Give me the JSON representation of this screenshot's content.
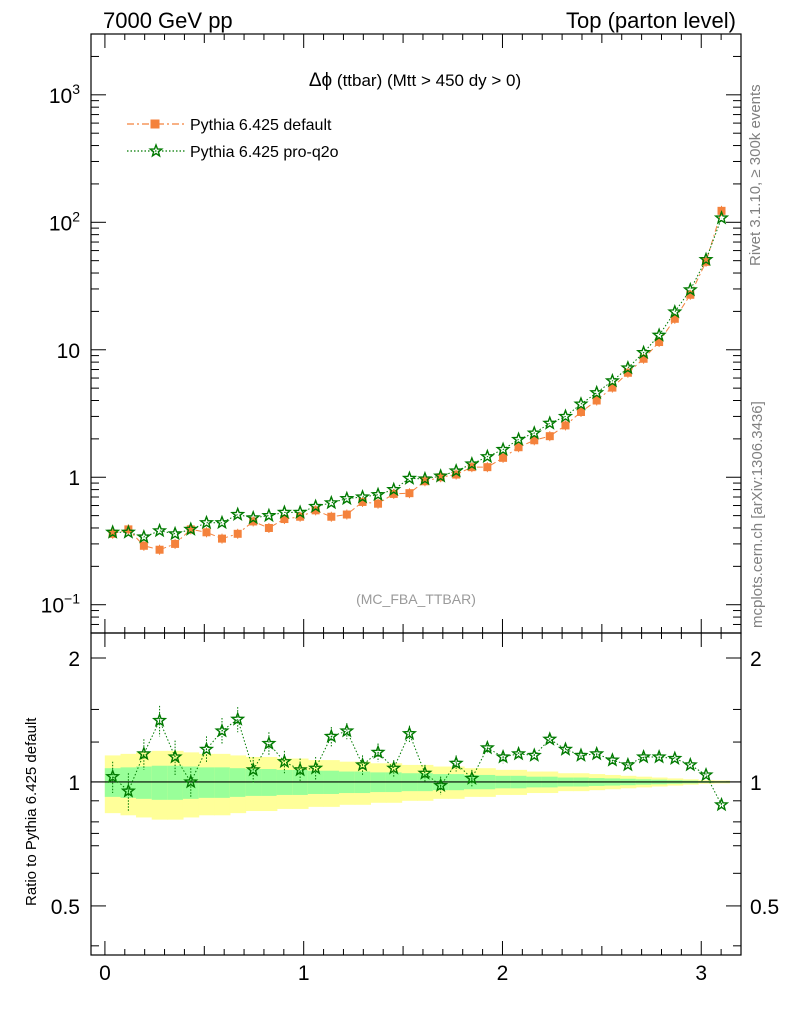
{
  "header": {
    "left": "7000 GeV pp",
    "right": "Top (parton level)"
  },
  "side_labels": {
    "rivet": "Rivet 3.1.10, ≥ 300k events",
    "mcplots": "mcplots.cern.ch [arXiv:1306.3436]"
  },
  "ratio_ylabel": "Ratio to Pythia 6.425 default",
  "analysis_tag": "(MC_FBA_TTBAR)",
  "chart_data": {
    "type": "line",
    "title": "Δϕ (ttbar) (Mtt > 450 dy > 0)",
    "title_prefix": "Δϕ",
    "title_rest": " (ttbar) (Mtt > 450 dy > 0)",
    "xlim": [
      -0.07,
      3.2
    ],
    "ylim_main": [
      0.06,
      3000
    ],
    "ylog": true,
    "ylim_ratio": [
      0.38,
      2.3
    ],
    "ratio_ylog": true,
    "legend_position": "top-left",
    "main_yticks": [
      {
        "value": 0.1,
        "base": "10",
        "exp": "−1"
      },
      {
        "value": 1,
        "base": "1",
        "exp": ""
      },
      {
        "value": 10,
        "base": "10",
        "exp": ""
      },
      {
        "value": 100,
        "base": "10",
        "exp": "2"
      },
      {
        "value": 1000,
        "base": "10",
        "exp": "3"
      }
    ],
    "ratio_yticks": [
      {
        "value": 0.5,
        "label": "0.5"
      },
      {
        "value": 1,
        "label": "1"
      },
      {
        "value": 2,
        "label": "2"
      }
    ],
    "xticks": [
      {
        "value": 0,
        "label": "0"
      },
      {
        "value": 1,
        "label": "1"
      },
      {
        "value": 2,
        "label": "2"
      },
      {
        "value": 3,
        "label": "3"
      }
    ],
    "x": [
      0.039,
      0.118,
      0.196,
      0.275,
      0.353,
      0.432,
      0.511,
      0.589,
      0.668,
      0.746,
      0.825,
      0.903,
      0.982,
      1.06,
      1.139,
      1.217,
      1.296,
      1.374,
      1.453,
      1.532,
      1.61,
      1.689,
      1.767,
      1.846,
      1.924,
      2.003,
      2.081,
      2.16,
      2.238,
      2.317,
      2.395,
      2.474,
      2.553,
      2.631,
      2.71,
      2.788,
      2.867,
      2.945,
      3.024,
      3.102
    ],
    "series": [
      {
        "name": "Pythia 6.425 default",
        "color": "#f4823c",
        "marker": "square",
        "values": [
          0.36,
          0.39,
          0.29,
          0.27,
          0.3,
          0.39,
          0.37,
          0.33,
          0.36,
          0.45,
          0.4,
          0.47,
          0.49,
          0.55,
          0.49,
          0.51,
          0.64,
          0.62,
          0.74,
          0.75,
          0.93,
          1.0,
          1.05,
          1.2,
          1.2,
          1.42,
          1.72,
          1.95,
          2.1,
          2.55,
          3.25,
          4.0,
          5.05,
          6.6,
          8.5,
          11.5,
          17.5,
          27.0,
          49.0,
          123.0
        ]
      },
      {
        "name": "Pythia 6.425 pro-q2o",
        "color": "#007a00",
        "marker": "star",
        "values": [
          0.37,
          0.37,
          0.34,
          0.38,
          0.36,
          0.39,
          0.44,
          0.44,
          0.51,
          0.48,
          0.5,
          0.53,
          0.53,
          0.59,
          0.63,
          0.68,
          0.7,
          0.73,
          0.8,
          0.98,
          0.97,
          1.02,
          1.12,
          1.27,
          1.45,
          1.65,
          1.98,
          2.22,
          2.65,
          3.0,
          3.75,
          4.6,
          5.7,
          7.2,
          9.5,
          13.0,
          19.8,
          29.5,
          51.0,
          108.0
        ]
      }
    ],
    "ratio": [
      1.03,
      0.95,
      1.17,
      1.41,
      1.15,
      1.0,
      1.2,
      1.33,
      1.42,
      1.07,
      1.24,
      1.12,
      1.07,
      1.08,
      1.29,
      1.33,
      1.1,
      1.18,
      1.08,
      1.31,
      1.05,
      0.98,
      1.11,
      1.02,
      1.21,
      1.15,
      1.17,
      1.16,
      1.27,
      1.2,
      1.16,
      1.17,
      1.13,
      1.1,
      1.15,
      1.15,
      1.14,
      1.1,
      1.04,
      0.88
    ],
    "ratio_error": [
      0.09,
      0.1,
      0.1,
      0.12,
      0.11,
      0.08,
      0.09,
      0.1,
      0.1,
      0.08,
      0.08,
      0.07,
      0.07,
      0.07,
      0.07,
      0.06,
      0.06,
      0.06,
      0.05,
      0.06,
      0.05,
      0.05,
      0.05,
      0.05,
      0.04,
      0.04,
      0.03,
      0.03,
      0.03,
      0.03,
      0.02,
      0.02,
      0.02,
      0.02,
      0.02,
      0.02,
      0.01,
      0.01,
      0.01,
      0.01
    ],
    "band_outer": [
      0.16,
      0.17,
      0.18,
      0.19,
      0.19,
      0.18,
      0.17,
      0.17,
      0.16,
      0.15,
      0.15,
      0.14,
      0.14,
      0.13,
      0.13,
      0.12,
      0.12,
      0.11,
      0.11,
      0.1,
      0.1,
      0.09,
      0.09,
      0.08,
      0.08,
      0.07,
      0.07,
      0.06,
      0.06,
      0.05,
      0.05,
      0.045,
      0.04,
      0.035,
      0.03,
      0.025,
      0.02,
      0.015,
      0.01,
      0.008
    ],
    "band_inner": [
      0.08,
      0.085,
      0.09,
      0.095,
      0.095,
      0.09,
      0.085,
      0.085,
      0.08,
      0.075,
      0.075,
      0.07,
      0.07,
      0.065,
      0.065,
      0.06,
      0.06,
      0.055,
      0.055,
      0.05,
      0.05,
      0.045,
      0.045,
      0.04,
      0.04,
      0.035,
      0.035,
      0.03,
      0.03,
      0.025,
      0.025,
      0.022,
      0.02,
      0.018,
      0.015,
      0.013,
      0.01,
      0.008,
      0.005,
      0.004
    ],
    "band_colors": {
      "outer": "#ffff99",
      "inner": "#99ff99"
    }
  }
}
